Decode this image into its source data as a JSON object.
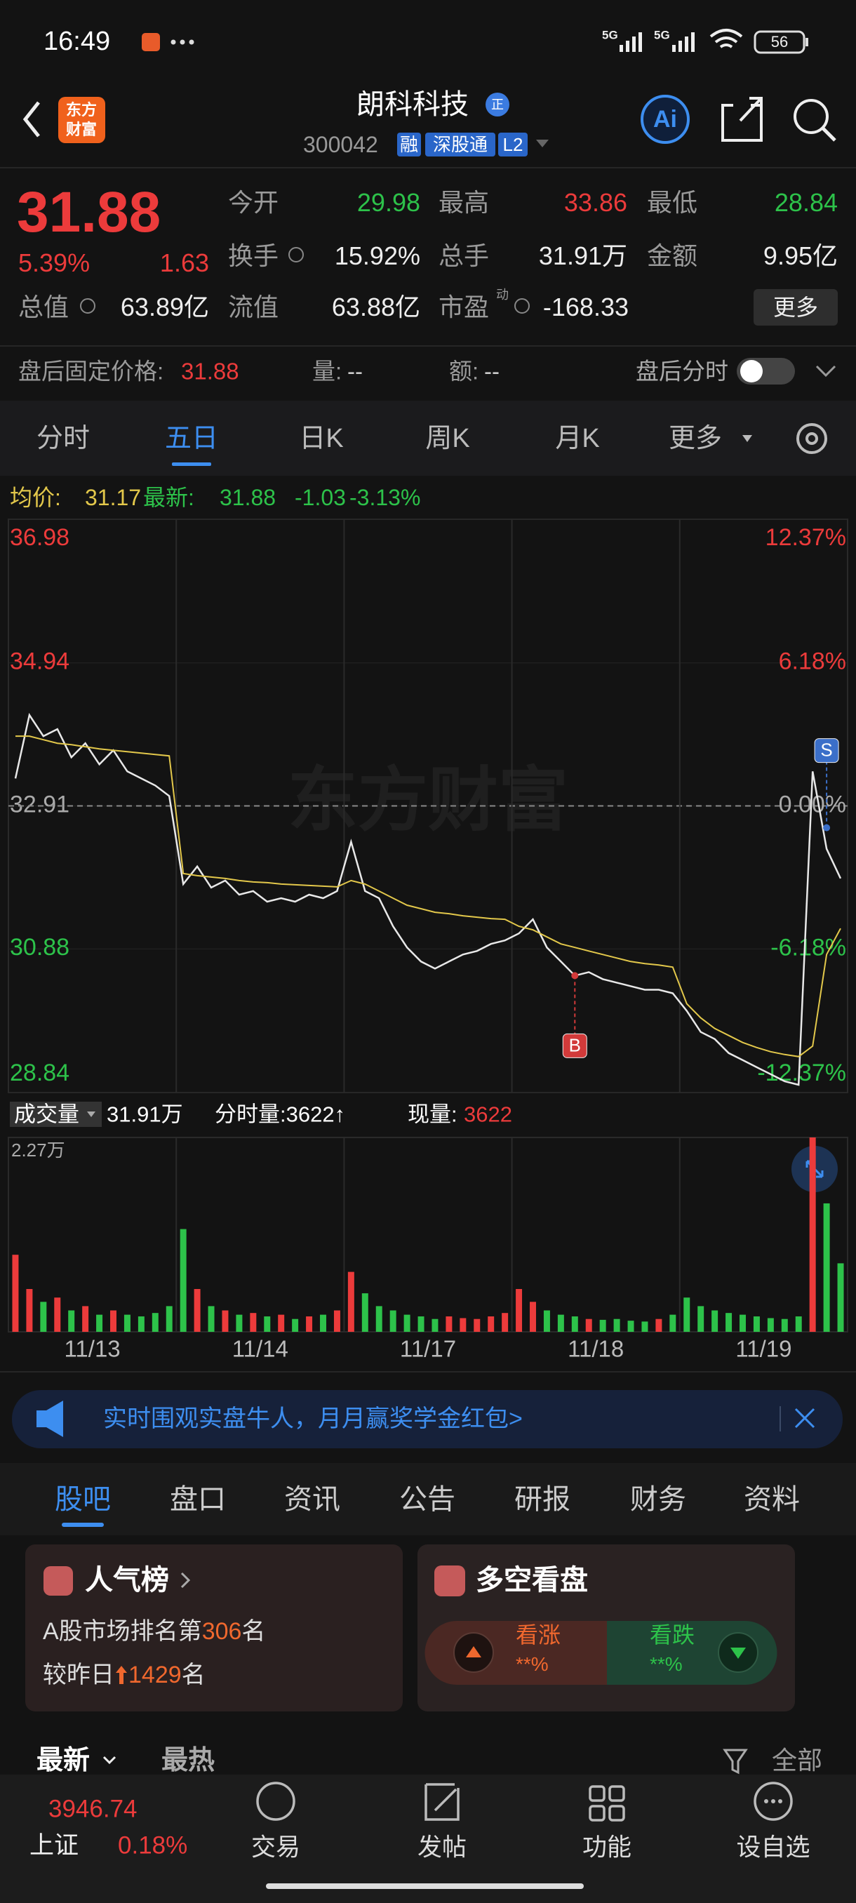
{
  "status_bar": {
    "time": "16:49",
    "network": [
      "5G",
      "5G"
    ],
    "battery": "56"
  },
  "header": {
    "logo": [
      "东方",
      "财富"
    ],
    "title": "朗科科技",
    "badge": "正",
    "code": "300042",
    "tags": [
      "融",
      "深股通",
      "L2"
    ],
    "ai": "Ai"
  },
  "quote": {
    "price": "31.88",
    "change_percent": "5.39%",
    "change": "1.63",
    "stats": [
      {
        "label": "今开",
        "value": "29.98"
      },
      {
        "label": "最高",
        "value": "33.86"
      },
      {
        "label": "最低",
        "value": "28.84"
      },
      {
        "label": "换手",
        "value": "15.92%"
      },
      {
        "label": "总手",
        "value": "31.91万"
      },
      {
        "label": "金额",
        "value": "9.95亿"
      },
      {
        "label": "总值",
        "value": "63.89亿"
      },
      {
        "label": "流值",
        "value": "63.88亿"
      },
      {
        "label": "市盈",
        "value": "-168.33",
        "superscript": "动"
      }
    ],
    "more": "更多"
  },
  "after_hours": {
    "label": "盘后固定价格:",
    "price": "31.88",
    "volume_label": "量:",
    "volume": "--",
    "amount_label": "额:",
    "amount": "--",
    "toggle_label": "盘后分时"
  },
  "tabs": {
    "items": [
      "分时",
      "五日",
      "日K",
      "周K",
      "月K",
      "更多"
    ],
    "active": 1
  },
  "legend": {
    "avg_label": "均价:",
    "avg": "31.17",
    "latest_label": "最新:",
    "latest": "31.88",
    "change": "-1.03",
    "change_percent": "-3.13%"
  },
  "volume_header": {
    "label": "成交量",
    "total": "31.91万",
    "tick_volume": "分时量:3622↑",
    "current_label": "现量:",
    "current": "3622"
  },
  "chart_data": [
    {
      "type": "line",
      "watermark": "东方财富",
      "x": [
        0,
        1,
        2,
        3,
        4,
        5,
        6,
        7,
        8,
        9,
        10,
        11,
        12,
        13,
        14,
        15,
        16,
        17,
        18,
        19,
        20,
        21,
        22,
        23,
        24,
        25,
        26,
        27,
        28,
        29,
        30,
        31,
        32,
        33,
        34,
        35,
        36,
        37,
        38,
        39,
        40,
        41,
        42,
        43,
        44,
        45,
        46,
        47,
        48,
        49,
        50,
        51,
        52,
        53,
        54,
        55,
        56,
        57,
        58,
        59
      ],
      "xlim": [
        -0.5,
        59.5
      ],
      "xticks": [
        {
          "value": 5.5,
          "label": "11/13"
        },
        {
          "value": 17.5,
          "label": "11/14"
        },
        {
          "value": 29.5,
          "label": "11/17"
        },
        {
          "value": 41.5,
          "label": "11/18"
        },
        {
          "value": 53.5,
          "label": "11/19"
        }
      ],
      "ylim": [
        28.84,
        36.98
      ],
      "yticks": [
        36.98,
        34.94,
        32.91,
        30.88,
        28.84
      ],
      "y2lim": [
        -12.37,
        12.37
      ],
      "y2ticks": [
        {
          "value": 12.37,
          "label": "12.37%"
        },
        {
          "value": 6.18,
          "label": "6.18%"
        },
        {
          "value": 0,
          "label": "0.00%"
        },
        {
          "value": -6.18,
          "label": "-6.18%"
        },
        {
          "value": -12.37,
          "label": "-12.37%"
        }
      ],
      "up_color": "#ec3b3b",
      "down_color": "#2dc24a",
      "series": [
        {
          "color": "#e8e8e8",
          "values": [
            33.3,
            34.2,
            33.9,
            34.0,
            33.6,
            33.8,
            33.5,
            33.7,
            33.4,
            33.3,
            33.2,
            33.05,
            31.8,
            32.05,
            31.75,
            31.85,
            31.65,
            31.7,
            31.55,
            31.6,
            31.55,
            31.65,
            31.6,
            31.7,
            32.4,
            31.7,
            31.6,
            31.2,
            30.9,
            30.7,
            30.6,
            30.7,
            30.8,
            30.85,
            30.95,
            31.0,
            31.1,
            31.3,
            30.9,
            30.7,
            30.5,
            30.55,
            30.45,
            30.4,
            30.35,
            30.3,
            30.3,
            30.25,
            30.0,
            29.7,
            29.6,
            29.4,
            29.3,
            29.2,
            29.1,
            29.0,
            28.95,
            33.4,
            32.3,
            31.88
          ]
        },
        {
          "color": "#e3c84b",
          "values": [
            33.9,
            33.9,
            33.85,
            33.8,
            33.78,
            33.75,
            33.72,
            33.7,
            33.68,
            33.66,
            33.64,
            33.62,
            31.95,
            31.92,
            31.9,
            31.88,
            31.85,
            31.83,
            31.82,
            31.8,
            31.79,
            31.78,
            31.77,
            31.76,
            31.85,
            31.8,
            31.7,
            31.6,
            31.5,
            31.45,
            31.4,
            31.38,
            31.35,
            31.33,
            31.31,
            31.3,
            31.2,
            31.15,
            31.05,
            30.95,
            30.9,
            30.85,
            30.8,
            30.75,
            30.7,
            30.67,
            30.65,
            30.62,
            30.1,
            29.9,
            29.75,
            29.65,
            29.55,
            29.48,
            29.42,
            29.38,
            29.35,
            29.5,
            30.8,
            31.17
          ]
        }
      ],
      "annotations": [
        {
          "text": "B",
          "x": 40,
          "value": 30.5
        },
        {
          "text": "S",
          "x": 58,
          "value": 32.6
        }
      ]
    },
    {
      "type": "bar",
      "x": [
        0,
        1,
        2,
        3,
        4,
        5,
        6,
        7,
        8,
        9,
        10,
        11,
        12,
        13,
        14,
        15,
        16,
        17,
        18,
        19,
        20,
        21,
        22,
        23,
        24,
        25,
        26,
        27,
        28,
        29,
        30,
        31,
        32,
        33,
        34,
        35,
        36,
        37,
        38,
        39,
        40,
        41,
        42,
        43,
        44,
        45,
        46,
        47,
        48,
        49,
        50,
        51,
        52,
        53,
        54,
        55,
        56,
        57,
        58,
        59
      ],
      "xlim": [
        -0.5,
        59.5
      ],
      "ylim": [
        0,
        22700
      ],
      "yticks": [
        {
          "value": 22700,
          "label": "2.27万"
        }
      ],
      "values": [
        9000,
        5000,
        3500,
        4000,
        2500,
        3000,
        2000,
        2500,
        2000,
        1800,
        2200,
        3000,
        12000,
        5000,
        3000,
        2500,
        2000,
        2200,
        1800,
        2000,
        1500,
        1800,
        2000,
        2500,
        7000,
        4500,
        3000,
        2500,
        2000,
        1800,
        1500,
        1800,
        1600,
        1500,
        1800,
        2200,
        5000,
        3500,
        2500,
        2000,
        1800,
        1500,
        1400,
        1500,
        1300,
        1200,
        1500,
        2000,
        4000,
        3000,
        2500,
        2200,
        2000,
        1800,
        1600,
        1500,
        1800,
        22700,
        15000,
        8000
      ]
    }
  ],
  "banner": {
    "text": "实时围观实盘牛人，月月赢奖学金红包>"
  },
  "sub_tabs": {
    "items": [
      "股吧",
      "盘口",
      "资讯",
      "公告",
      "研报",
      "财务",
      "资料"
    ],
    "active": 0
  },
  "popularity_card": {
    "title": "人气榜",
    "rank_prefix": "A股市场排名第",
    "rank": "306",
    "rank_suffix": "名",
    "change_prefix": "较昨日",
    "change": "1429",
    "change_suffix": "名"
  },
  "sentiment_card": {
    "title": "多空看盘",
    "bull_label": "看涨",
    "bull_value": "**%",
    "bear_label": "看跌",
    "bear_value": "**%"
  },
  "feed_tabs": {
    "items": [
      "最新",
      "最热"
    ],
    "filter": "全部"
  },
  "bottom_nav": {
    "index_value": "3946.74",
    "index_name": "上证",
    "index_change": "0.18%",
    "items": [
      "交易",
      "发帖",
      "功能",
      "设自选"
    ]
  }
}
